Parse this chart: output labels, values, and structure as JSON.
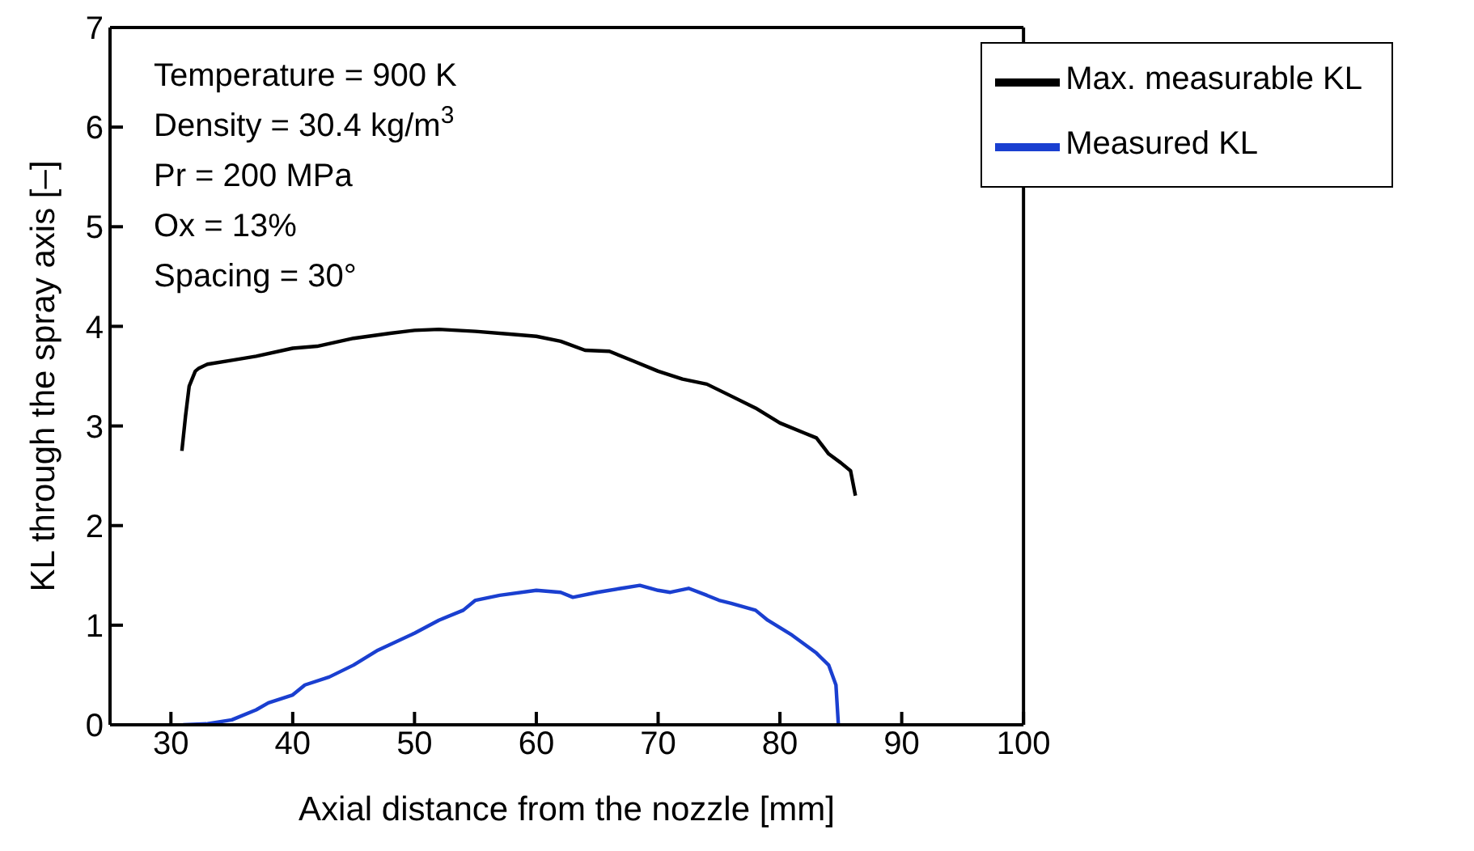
{
  "chart_data": {
    "type": "line",
    "xlabel": "Axial distance from the nozzle [mm]",
    "ylabel": "KL through the spray axis [–]",
    "xlim": [
      25,
      100
    ],
    "xticks": [
      30,
      40,
      50,
      60,
      70,
      80,
      90,
      100
    ],
    "ylim": [
      0,
      7
    ],
    "yticks": [
      0,
      1,
      2,
      3,
      4,
      5,
      6,
      7
    ],
    "grid": false,
    "legend": "top right",
    "marker": "none",
    "line_style": "solid",
    "annotations": [
      "Temperature = 900 K",
      "Density = 30.4 kg/m$^{3}$",
      "Pr = 200 MPa",
      "Ox = 13%",
      "Spacing = 30°"
    ],
    "series": [
      {
        "name": "Max. measurable KL",
        "color": "#000000",
        "x": [
          30.9,
          31.2,
          31.5,
          32,
          32.3,
          33,
          35,
          37,
          40,
          42,
          45,
          48,
          50,
          52,
          55,
          58,
          60,
          62,
          64,
          66,
          68,
          70,
          72,
          74,
          76,
          78,
          80,
          82,
          83,
          84,
          85,
          85.8,
          86.2
        ],
        "values": [
          2.75,
          3.1,
          3.4,
          3.55,
          3.58,
          3.62,
          3.66,
          3.7,
          3.78,
          3.8,
          3.88,
          3.93,
          3.96,
          3.97,
          3.95,
          3.92,
          3.9,
          3.85,
          3.76,
          3.75,
          3.65,
          3.55,
          3.47,
          3.42,
          3.3,
          3.18,
          3.03,
          2.93,
          2.88,
          2.72,
          2.63,
          2.55,
          2.3
        ]
      },
      {
        "name": "Measured KL",
        "color": "#1a3fd0",
        "x": [
          31,
          33,
          35,
          37,
          38,
          40,
          41,
          43,
          45,
          47,
          50,
          52,
          54,
          55,
          57,
          60,
          62,
          63,
          65,
          67,
          68.5,
          70,
          71,
          72.5,
          74,
          75,
          76,
          78,
          79,
          81,
          83,
          84,
          84.6,
          84.8
        ],
        "values": [
          0,
          0.01,
          0.05,
          0.15,
          0.22,
          0.3,
          0.4,
          0.48,
          0.6,
          0.75,
          0.92,
          1.05,
          1.15,
          1.25,
          1.3,
          1.35,
          1.33,
          1.28,
          1.33,
          1.37,
          1.4,
          1.35,
          1.33,
          1.37,
          1.3,
          1.25,
          1.22,
          1.15,
          1.05,
          0.9,
          0.72,
          0.6,
          0.4,
          0
        ]
      }
    ]
  }
}
